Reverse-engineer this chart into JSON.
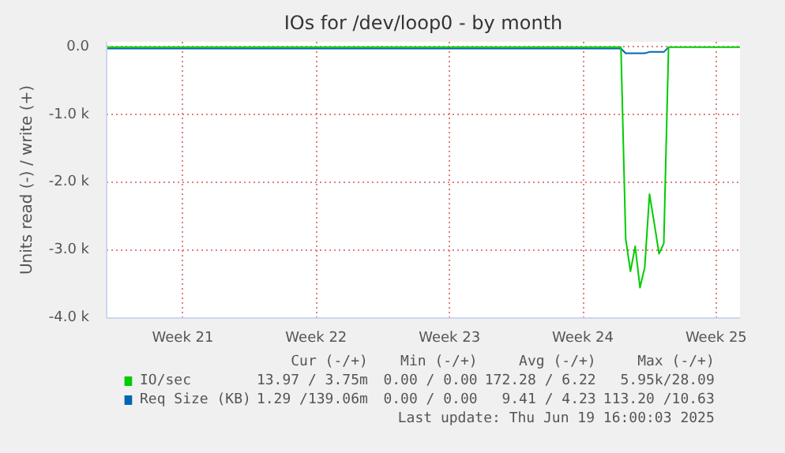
{
  "chart_data": {
    "type": "line",
    "title": "IOs for /dev/loop0 - by month",
    "ylabel": "Units read (-) / write (+)",
    "categories": [
      null,
      null,
      null,
      null,
      null,
      null,
      null,
      null,
      null,
      null,
      null,
      null,
      null,
      null,
      null,
      null,
      "Week 21",
      null,
      null,
      null,
      null,
      null,
      null,
      null,
      null,
      null,
      null,
      null,
      null,
      null,
      null,
      null,
      null,
      null,
      null,
      null,
      null,
      null,
      null,
      null,
      null,
      null,
      null,
      null,
      "Week 22",
      null,
      null,
      null,
      null,
      null,
      null,
      null,
      null,
      null,
      null,
      null,
      null,
      null,
      null,
      null,
      null,
      null,
      null,
      null,
      null,
      null,
      null,
      null,
      null,
      null,
      null,
      null,
      "Week 23",
      null,
      null,
      null,
      null,
      null,
      null,
      null,
      null,
      null,
      null,
      null,
      null,
      null,
      null,
      null,
      null,
      null,
      null,
      null,
      null,
      null,
      null,
      null,
      null,
      null,
      null,
      null,
      "Week 24",
      null,
      null,
      null,
      null,
      null,
      null,
      null,
      null,
      null,
      null,
      null,
      null,
      null,
      null,
      null,
      null,
      null,
      null,
      null,
      null,
      null,
      null,
      null,
      null,
      null,
      null,
      null,
      "Week 25",
      null,
      null,
      null,
      null,
      null
    ],
    "series": [
      {
        "name": "IO/sec",
        "color": "#00cc00",
        "values": [
          0,
          0,
          0,
          0,
          0,
          0,
          0,
          0,
          0,
          0,
          0,
          0,
          0,
          0,
          0,
          0,
          0,
          0,
          0,
          0,
          0,
          0,
          0,
          0,
          0,
          0,
          0,
          0,
          0,
          0,
          0,
          0,
          0,
          0,
          0,
          0,
          0,
          0,
          0,
          0,
          0,
          0,
          0,
          0,
          0,
          0,
          0,
          0,
          0,
          0,
          0,
          0,
          0,
          0,
          0,
          0,
          0,
          0,
          0,
          0,
          0,
          0,
          0,
          0,
          0,
          0,
          0,
          0,
          0,
          0,
          0,
          0,
          0,
          0,
          0,
          0,
          0,
          0,
          0,
          0,
          0,
          0,
          0,
          0,
          0,
          0,
          0,
          0,
          0,
          0,
          0,
          0,
          0,
          0,
          0,
          0,
          0,
          0,
          0,
          0,
          0,
          0,
          0,
          0,
          0,
          0,
          0,
          0,
          0,
          -2830,
          -3310,
          -2940,
          -3550,
          -3250,
          -2170,
          -2600,
          -3050,
          -2900,
          0,
          0,
          0,
          0,
          0,
          0,
          0,
          0,
          0,
          0,
          0,
          0,
          0,
          0,
          0,
          0
        ]
      },
      {
        "name": "Req Size (KB)",
        "color": "#0066b3",
        "values": [
          -20,
          -20,
          -20,
          -20,
          -20,
          -20,
          -20,
          -20,
          -20,
          -20,
          -20,
          -20,
          -20,
          -20,
          -20,
          -20,
          -20,
          -20,
          -20,
          -20,
          -20,
          -20,
          -20,
          -20,
          -20,
          -20,
          -20,
          -20,
          -20,
          -20,
          -20,
          -20,
          -20,
          -20,
          -20,
          -20,
          -20,
          -20,
          -20,
          -20,
          -20,
          -20,
          -20,
          -20,
          -20,
          -20,
          -20,
          -20,
          -20,
          -20,
          -20,
          -20,
          -20,
          -20,
          -20,
          -20,
          -20,
          -20,
          -20,
          -20,
          -20,
          -20,
          -20,
          -20,
          -20,
          -20,
          -20,
          -20,
          -20,
          -20,
          -20,
          -20,
          -20,
          -20,
          -20,
          -20,
          -20,
          -20,
          -20,
          -20,
          -20,
          -20,
          -20,
          -20,
          -20,
          -20,
          -20,
          -20,
          -20,
          -20,
          -20,
          -20,
          -20,
          -20,
          -20,
          -20,
          -20,
          -20,
          -20,
          -20,
          -20,
          -20,
          -20,
          -20,
          -20,
          -20,
          -20,
          -20,
          -20,
          -90,
          -90,
          -90,
          -90,
          -90,
          -70,
          -70,
          -70,
          -70,
          0,
          null,
          null,
          null,
          null,
          null,
          null,
          null,
          null,
          null,
          null,
          null,
          null,
          null,
          null,
          null
        ]
      }
    ],
    "ylim": [
      -4000,
      80
    ],
    "yticks": [
      {
        "value": -4000,
        "label": "-4.0 k"
      },
      {
        "value": -3000,
        "label": "-3.0 k"
      },
      {
        "value": -2000,
        "label": "-2.0 k"
      },
      {
        "value": -1000,
        "label": "-1.0 k"
      },
      {
        "value": 0,
        "label": "0.0"
      }
    ],
    "grid": true,
    "legend": "bottom",
    "marker": "none",
    "line_style": "solid",
    "annotations": [
      "Cur (-/+)",
      "Min (-/+)",
      "Avg (-/+)",
      "Max (-/+)",
      "13.97 / 3.75m",
      "0.00 / 0.00",
      "172.28 / 6.22",
      "5.95k/28.09",
      "1.29 /139.06m",
      "0.00 / 0.00",
      "9.41 / 4.23",
      "113.20 /10.63",
      "Last update: Thu Jun 19 16:00:03 2025"
    ]
  }
}
